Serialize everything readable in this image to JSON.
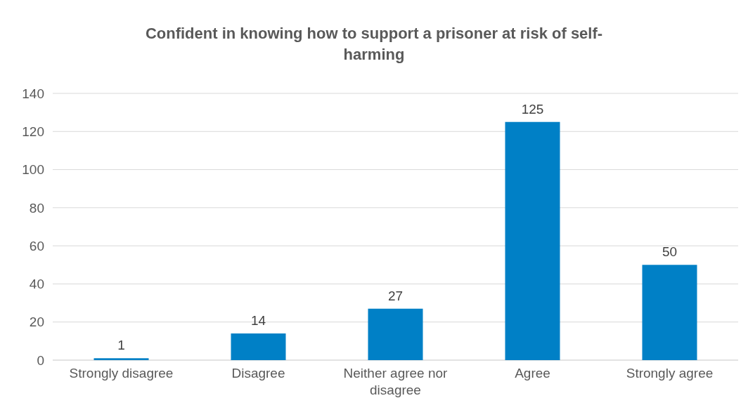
{
  "chart_data": {
    "type": "bar",
    "title": "Confident in knowing how to support a prisoner at risk of self-harming",
    "categories": [
      "Strongly disagree",
      "Disagree",
      "Neither agree nor disagree",
      "Agree",
      "Strongly agree"
    ],
    "values": [
      1,
      14,
      27,
      125,
      50
    ],
    "color": "#0080c6",
    "ylim": [
      0,
      140
    ],
    "yticks": [
      0,
      20,
      40,
      60,
      80,
      100,
      120,
      140
    ],
    "grid": "y",
    "data_labels": true
  }
}
